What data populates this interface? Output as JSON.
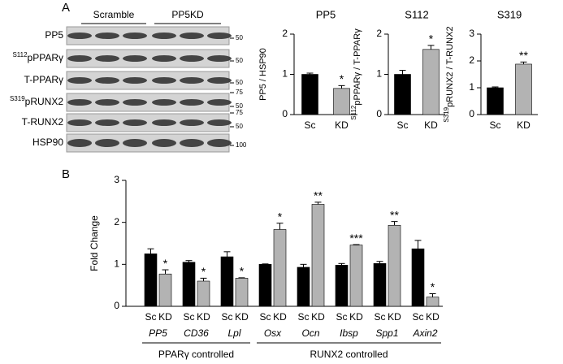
{
  "figure": {
    "panel_labels": [
      "A",
      "B"
    ],
    "blot": {
      "lane_groups": [
        "Scramble",
        "PP5KD"
      ],
      "rows": [
        {
          "label": "PP5",
          "markers": [
            "50"
          ]
        },
        {
          "sup": "S112",
          "label": "pPPARγ",
          "markers": [
            "50"
          ]
        },
        {
          "label": "T-PPARγ",
          "markers": [
            "50"
          ]
        },
        {
          "sup": "S319",
          "label": "pRUNX2",
          "markers": [
            "75",
            "50"
          ]
        },
        {
          "label": "T-RUNX2",
          "markers": [
            "75",
            "50"
          ]
        },
        {
          "label": "HSP90",
          "markers": [
            "100"
          ]
        }
      ]
    }
  },
  "chart_data": [
    {
      "type": "bar",
      "title": "PP5",
      "ylabel": "PP5 / HSP90",
      "categories": [
        "Sc",
        "KD"
      ],
      "values": [
        1.0,
        0.65
      ],
      "errors": [
        0.03,
        0.07
      ],
      "colors": [
        "#000000",
        "#b3b3b3"
      ],
      "significance": "*",
      "ylim": [
        0,
        2
      ],
      "yticks": [
        0,
        1,
        2
      ]
    },
    {
      "type": "bar",
      "title": "S112",
      "ylabel_sup": "S112",
      "ylabel": "pPPARγ / T-PPARγ",
      "categories": [
        "Sc",
        "KD"
      ],
      "values": [
        1.0,
        1.62
      ],
      "errors": [
        0.1,
        0.1
      ],
      "colors": [
        "#000000",
        "#b3b3b3"
      ],
      "significance": "*",
      "ylim": [
        0,
        2
      ],
      "yticks": [
        0,
        1,
        2
      ]
    },
    {
      "type": "bar",
      "title": "S319",
      "ylabel_sup": "S319",
      "ylabel": "pRUNX2 / T-RUNX2",
      "categories": [
        "Sc",
        "KD"
      ],
      "values": [
        1.0,
        1.88
      ],
      "errors": [
        0.03,
        0.08
      ],
      "colors": [
        "#000000",
        "#b3b3b3"
      ],
      "significance": "**",
      "ylim": [
        0,
        3
      ],
      "yticks": [
        0,
        1,
        2,
        3
      ]
    },
    {
      "type": "grouped_bar",
      "ylabel": "Fold Change",
      "category_groups": [
        {
          "label": "PPARγ controlled",
          "categories": [
            "PP5",
            "CD36",
            "Lpl"
          ]
        },
        {
          "label": "RUNX2 controlled",
          "categories": [
            "Osx",
            "Ocn",
            "Ibsp",
            "Spp1",
            "Axin2"
          ]
        }
      ],
      "series": [
        {
          "name": "Sc",
          "color": "#000000",
          "values": [
            1.25,
            1.05,
            1.18,
            1.0,
            0.93,
            0.98,
            1.02,
            1.37
          ],
          "errors": [
            0.12,
            0.04,
            0.12,
            0.01,
            0.07,
            0.04,
            0.05,
            0.2
          ]
        },
        {
          "name": "KD",
          "color": "#b3b3b3",
          "values": [
            0.77,
            0.6,
            0.67,
            1.83,
            2.43,
            1.46,
            1.93,
            0.22
          ],
          "errors": [
            0.1,
            0.07,
            0.01,
            0.15,
            0.05,
            0.01,
            0.09,
            0.08
          ],
          "significance": [
            "*",
            "*",
            "*",
            "*",
            "**",
            "***",
            "**",
            "*"
          ]
        }
      ],
      "ylim": [
        0,
        3
      ],
      "yticks": [
        0,
        1,
        2,
        3
      ]
    }
  ]
}
